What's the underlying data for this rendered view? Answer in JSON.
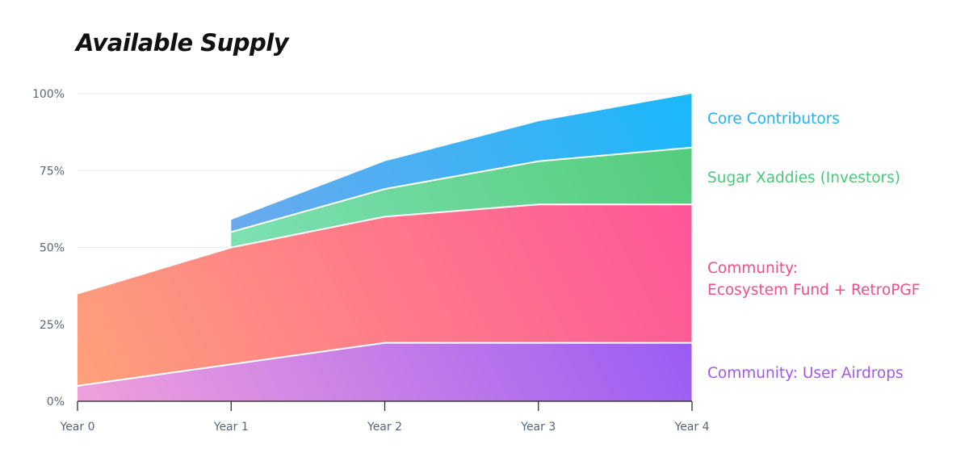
{
  "chart_data": {
    "type": "area",
    "title": "Available Supply",
    "x": [
      "Year 0",
      "Year 1",
      "Year 2",
      "Year 3",
      "Year 4"
    ],
    "y_ticks": [
      "0%",
      "25%",
      "50%",
      "75%",
      "100%"
    ],
    "ylim": [
      0,
      100
    ],
    "grid": true,
    "stacking": "cumulative",
    "series": [
      {
        "key": "airdrops",
        "label_lines": [
          "Community: User Airdrops"
        ],
        "label_color": "#a259e6",
        "gradient": [
          "#f0a0dc",
          "#8a4ef8"
        ],
        "top": [
          5,
          12,
          19,
          19,
          19
        ]
      },
      {
        "key": "ecosystem",
        "label_lines": [
          "Community:",
          "Ecosystem Fund + RetroPGF"
        ],
        "label_color": "#f24f86",
        "gradient": [
          "#fea17a",
          "#fe4f9c"
        ],
        "top": [
          35,
          50,
          60,
          64,
          64
        ]
      },
      {
        "key": "investors",
        "label_lines": [
          "Sugar Xaddies (Investors)"
        ],
        "label_color": "#4cc879",
        "gradient": [
          "#90eacb",
          "#52cb79"
        ],
        "top": [
          null,
          55,
          69,
          78,
          82.5
        ]
      },
      {
        "key": "core",
        "label_lines": [
          "Core Contributors"
        ],
        "label_color": "#1fb4f0",
        "gradient": [
          "#8ea4e8",
          "#1ab8fa"
        ],
        "top": [
          null,
          59,
          78,
          91,
          100
        ]
      }
    ]
  }
}
